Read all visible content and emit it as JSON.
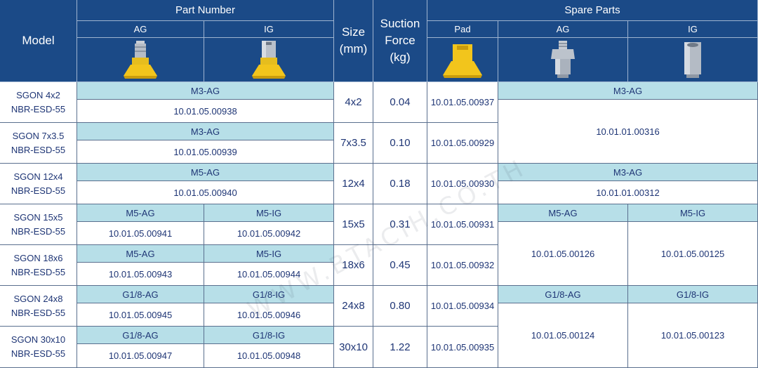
{
  "header": {
    "model": "Model",
    "part_number": "Part Number",
    "size": "Size\n(mm)",
    "suction_force": "Suction\nForce\n(kg)",
    "spare_parts": "Spare Parts",
    "ag": "AG",
    "ig": "IG",
    "pad": "Pad",
    "images": {
      "part_ag": "yellow-suction-cup-male-thread-icon",
      "part_ig": "yellow-suction-cup-female-thread-icon",
      "pad": "yellow-pad-icon",
      "spare_ag": "silver-male-fitting-icon",
      "spare_ig": "silver-female-fitting-icon"
    }
  },
  "rows": [
    {
      "model_line1": "SGON 4x2",
      "model_line2": "NBR-ESD-55",
      "thread": "M3-AG",
      "part": "10.01.05.00938",
      "size": "4x2",
      "force": "0.04",
      "pad": "10.01.05.00937"
    },
    {
      "model_line1": "SGON 7x3.5",
      "model_line2": "NBR-ESD-55",
      "thread": "M3-AG",
      "part": "10.01.05.00939",
      "size": "7x3.5",
      "force": "0.10",
      "pad": "10.01.05.00929"
    },
    {
      "model_line1": "SGON 12x4",
      "model_line2": "NBR-ESD-55",
      "thread": "M5-AG",
      "part": "10.01.05.00940",
      "size": "12x4",
      "force": "0.18",
      "pad": "10.01.05.00930"
    },
    {
      "model_line1": "SGON 15x5",
      "model_line2": "NBR-ESD-55",
      "thread_ag": "M5-AG",
      "thread_ig": "M5-IG",
      "part_ag": "10.01.05.00941",
      "part_ig": "10.01.05.00942",
      "size": "15x5",
      "force": "0.31",
      "pad": "10.01.05.00931"
    },
    {
      "model_line1": "SGON 18x6",
      "model_line2": "NBR-ESD-55",
      "thread_ag": "M5-AG",
      "thread_ig": "M5-IG",
      "part_ag": "10.01.05.00943",
      "part_ig": "10.01.05.00944",
      "size": "18x6",
      "force": "0.45",
      "pad": "10.01.05.00932"
    },
    {
      "model_line1": "SGON 24x8",
      "model_line2": "NBR-ESD-55",
      "thread_ag": "G1/8-AG",
      "thread_ig": "G1/8-IG",
      "part_ag": "10.01.05.00945",
      "part_ig": "10.01.05.00946",
      "size": "24x8",
      "force": "0.80",
      "pad": "10.01.05.00934"
    },
    {
      "model_line1": "SGON 30x10",
      "model_line2": "NBR-ESD-55",
      "thread_ag": "G1/8-AG",
      "thread_ig": "G1/8-IG",
      "part_ag": "10.01.05.00947",
      "part_ig": "10.01.05.00948",
      "size": "30x10",
      "force": "1.22",
      "pad": "10.01.05.00935"
    }
  ],
  "spare": {
    "g1_thread": "M3-AG",
    "g1_part": "10.01.01.00316",
    "g2_thread": "M3-AG",
    "g2_part": "10.01.01.00312",
    "g3_thread_ag": "M5-AG",
    "g3_thread_ig": "M5-IG",
    "g3_part_ag": "10.01.05.00126",
    "g3_part_ig": "10.01.05.00125",
    "g4_thread_ag": "G1/8-AG",
    "g4_thread_ig": "G1/8-IG",
    "g4_part_ag": "10.01.05.00124",
    "g4_part_ig": "10.01.05.00123"
  },
  "watermark": "WWW.BTACIH.CO.TH",
  "colors": {
    "header": "#1b4a87",
    "light_blue": "#b7dfe8",
    "text": "#1e3575"
  }
}
